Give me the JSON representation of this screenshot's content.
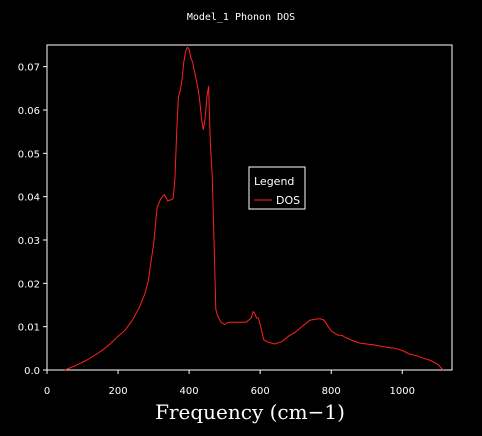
{
  "chart_data": {
    "type": "line",
    "title": "Model_1 Phonon DOS",
    "xlabel": "Frequency (cm−1)",
    "ylabel": "",
    "xlim": [
      0,
      1140
    ],
    "ylim": [
      0,
      0.075
    ],
    "grid": false,
    "legend": {
      "title": "Legend",
      "placement": "center-right"
    },
    "x_ticks": [
      {
        "value": 0,
        "label": "0"
      },
      {
        "value": 200,
        "label": "200"
      },
      {
        "value": 400,
        "label": "400"
      },
      {
        "value": 600,
        "label": "600"
      },
      {
        "value": 800,
        "label": "800"
      },
      {
        "value": 1000,
        "label": "1000"
      }
    ],
    "y_ticks": [
      {
        "value": 0,
        "label": "0.0"
      },
      {
        "value": 0.01,
        "label": "0.01"
      },
      {
        "value": 0.02,
        "label": "0.02"
      },
      {
        "value": 0.03,
        "label": "0.03"
      },
      {
        "value": 0.04,
        "label": "0.04"
      },
      {
        "value": 0.05,
        "label": "0.05"
      },
      {
        "value": 0.06,
        "label": "0.06"
      },
      {
        "value": 0.07,
        "label": "0.07"
      }
    ],
    "series": [
      {
        "name": "DOS",
        "color": "#ff2020",
        "x": [
          50,
          80,
          110,
          140,
          160,
          180,
          200,
          220,
          240,
          260,
          275,
          285,
          290,
          300,
          310,
          320,
          330,
          340,
          355,
          360,
          365,
          370,
          375,
          380,
          385,
          390,
          395,
          400,
          405,
          410,
          415,
          420,
          425,
          430,
          435,
          440,
          445,
          450,
          455,
          460,
          465,
          470,
          475,
          480,
          490,
          500,
          510,
          520,
          540,
          560,
          575,
          580,
          585,
          590,
          595,
          600,
          610,
          620,
          640,
          660,
          680,
          700,
          720,
          740,
          760,
          770,
          780,
          790,
          800,
          810,
          820,
          830,
          840,
          860,
          880,
          900,
          920,
          940,
          960,
          980,
          1000,
          1020,
          1040,
          1060,
          1080,
          1100,
          1115
        ],
        "values": [
          0.0,
          0.001,
          0.0022,
          0.0037,
          0.0048,
          0.0062,
          0.0078,
          0.0092,
          0.0115,
          0.0145,
          0.0175,
          0.0205,
          0.0235,
          0.029,
          0.0375,
          0.0395,
          0.0405,
          0.039,
          0.0395,
          0.044,
          0.055,
          0.063,
          0.0645,
          0.067,
          0.071,
          0.0735,
          0.0745,
          0.074,
          0.072,
          0.071,
          0.069,
          0.067,
          0.065,
          0.062,
          0.058,
          0.0555,
          0.058,
          0.063,
          0.0655,
          0.052,
          0.045,
          0.03,
          0.014,
          0.0125,
          0.011,
          0.0105,
          0.011,
          0.011,
          0.011,
          0.011,
          0.012,
          0.0135,
          0.013,
          0.012,
          0.012,
          0.0105,
          0.007,
          0.0065,
          0.006,
          0.0065,
          0.0078,
          0.0088,
          0.0102,
          0.0115,
          0.0118,
          0.0118,
          0.0115,
          0.0102,
          0.009,
          0.0085,
          0.008,
          0.008,
          0.0075,
          0.0068,
          0.0062,
          0.006,
          0.0058,
          0.0055,
          0.0052,
          0.005,
          0.0045,
          0.0037,
          0.0033,
          0.0027,
          0.0022,
          0.0013,
          0.0
        ]
      }
    ]
  }
}
